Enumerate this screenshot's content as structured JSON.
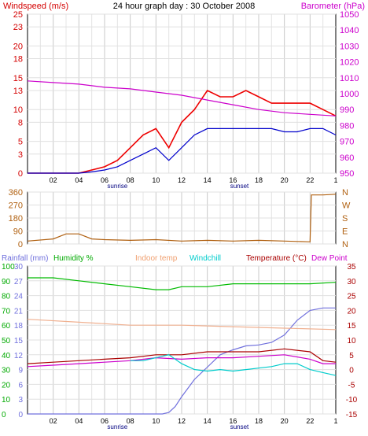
{
  "title": "24 hour graph day : 30 October 2008",
  "x_ticks": [
    "02",
    "04",
    "06",
    "08",
    "10",
    "12",
    "14",
    "16",
    "18",
    "20",
    "22",
    "1"
  ],
  "sunrise_label": "sunrise",
  "sunset_label": "sunset",
  "chart_data": [
    {
      "type": "line",
      "left_axis": {
        "label": "Windspeed (m/s)",
        "ticks": [
          0,
          3,
          5,
          8,
          10,
          13,
          15,
          18,
          20,
          23,
          25
        ],
        "range": [
          0,
          25
        ],
        "color": "#d40000"
      },
      "right_axis": {
        "label": "Barometer (hPa)",
        "ticks": [
          950,
          960,
          970,
          980,
          990,
          1000,
          1010,
          1020,
          1030,
          1040,
          1050
        ],
        "range": [
          950,
          1050
        ],
        "color": "#cc00cc"
      },
      "series": [
        {
          "name": "gust",
          "color": "#ee0000",
          "x": [
            0,
            2,
            4,
            5,
            6,
            7,
            8,
            9,
            10,
            11,
            12,
            13,
            14,
            15,
            16,
            17,
            18,
            19,
            20,
            21,
            22,
            23,
            24
          ],
          "y": [
            0,
            0,
            0,
            0.5,
            1,
            2,
            4,
            6,
            7,
            4,
            8,
            10,
            13,
            12,
            12,
            13,
            12,
            11,
            11,
            11,
            11,
            10,
            9
          ]
        },
        {
          "name": "average",
          "color": "#0000cc",
          "x": [
            0,
            2,
            4,
            5,
            6,
            7,
            8,
            9,
            10,
            11,
            12,
            13,
            14,
            15,
            16,
            17,
            18,
            19,
            20,
            21,
            22,
            23,
            24
          ],
          "y": [
            0,
            0,
            0,
            0.2,
            0.5,
            1,
            2,
            3,
            4,
            2,
            4,
            6,
            7,
            7,
            7,
            7,
            7,
            7,
            6.5,
            6.5,
            7,
            7,
            6
          ]
        },
        {
          "name": "barometer",
          "color": "#cc00cc",
          "x": [
            0,
            2,
            4,
            6,
            8,
            10,
            12,
            14,
            16,
            18,
            20,
            22,
            24
          ],
          "y": [
            1008,
            1007,
            1006,
            1004,
            1003,
            1001,
            999,
            996,
            993,
            990,
            988,
            987,
            986
          ]
        }
      ]
    },
    {
      "type": "line",
      "left_axis": {
        "ticks": [
          0,
          90,
          180,
          270,
          360
        ],
        "range": [
          0,
          360
        ]
      },
      "right_labels": [
        "N",
        "W",
        "S",
        "E",
        "N"
      ],
      "series": [
        {
          "name": "wind direction",
          "color": "#b06010",
          "x": [
            0,
            2,
            3,
            4,
            5,
            6,
            8,
            10,
            12,
            14,
            16,
            18,
            20,
            22,
            22.1,
            23,
            24
          ],
          "y": [
            20,
            35,
            70,
            70,
            35,
            30,
            25,
            30,
            20,
            25,
            20,
            25,
            20,
            15,
            340,
            340,
            345
          ]
        }
      ]
    },
    {
      "type": "line",
      "labels": {
        "rainfall": "Rainfall (mm)",
        "humidity": "Humidity %",
        "indoor": "Indoor temp",
        "windchill": "Windchill",
        "temperature": "Temperature (°C)",
        "dewpoint": "Dew Point"
      },
      "left_ticks_rain": [
        0,
        3,
        6,
        9,
        12,
        15,
        18,
        21,
        24,
        27,
        30
      ],
      "left_ticks_hum": [
        0,
        10,
        20,
        30,
        40,
        50,
        60,
        70,
        80,
        90,
        100
      ],
      "right_ticks": [
        35,
        30,
        25,
        20,
        15,
        10,
        5,
        0,
        -5,
        -10,
        -15
      ],
      "rain_range": [
        0,
        30
      ],
      "temp_range": [
        -15,
        35
      ],
      "series": [
        {
          "name": "rainfall",
          "color": "#7070dd",
          "x": [
            0,
            10.5,
            11,
            11.5,
            12,
            13,
            14,
            15,
            16,
            17,
            18,
            19,
            20,
            21,
            22,
            23,
            24
          ],
          "y": [
            0,
            0,
            0.3,
            1.5,
            3.5,
            7,
            9.5,
            12,
            13,
            13.8,
            14,
            14.5,
            16,
            19,
            21,
            21.5,
            21.5
          ]
        },
        {
          "name": "humidity",
          "color": "#00bb00",
          "x": [
            0,
            2,
            4,
            6,
            8,
            10,
            11,
            12,
            14,
            16,
            18,
            20,
            22,
            24
          ],
          "y": [
            92,
            92,
            90,
            88,
            86,
            84,
            84,
            86,
            86,
            88,
            88,
            88,
            88,
            89
          ]
        },
        {
          "name": "indoor temp",
          "color": "#f0b090",
          "x": [
            0,
            4,
            8,
            12,
            16,
            20,
            24
          ],
          "y": [
            17,
            16,
            15,
            15,
            14.5,
            14,
            13.5
          ]
        },
        {
          "name": "temperature",
          "color": "#aa0000",
          "x": [
            0,
            2,
            4,
            6,
            8,
            10,
            12,
            14,
            16,
            18,
            20,
            22,
            23,
            24
          ],
          "y": [
            2,
            2.5,
            3,
            3.5,
            4,
            5,
            5,
            6,
            6,
            6,
            7,
            6,
            3,
            2.5
          ]
        },
        {
          "name": "dew point",
          "color": "#cc00cc",
          "x": [
            0,
            2,
            4,
            6,
            8,
            10,
            12,
            14,
            16,
            18,
            20,
            22,
            23,
            24
          ],
          "y": [
            1,
            1.5,
            2,
            2.5,
            3,
            4,
            3.5,
            4,
            4,
            4.5,
            5,
            3.5,
            2,
            2
          ]
        },
        {
          "name": "windchill",
          "color": "#00cccc",
          "x": [
            8,
            9,
            10,
            11,
            12,
            13,
            14,
            15,
            16,
            17,
            18,
            19,
            20,
            21,
            22,
            23,
            24
          ],
          "y": [
            3,
            3,
            4,
            5,
            2,
            0,
            -0.5,
            0,
            -0.5,
            0,
            0.5,
            1,
            2,
            2,
            0,
            -1,
            -2
          ]
        }
      ]
    }
  ]
}
